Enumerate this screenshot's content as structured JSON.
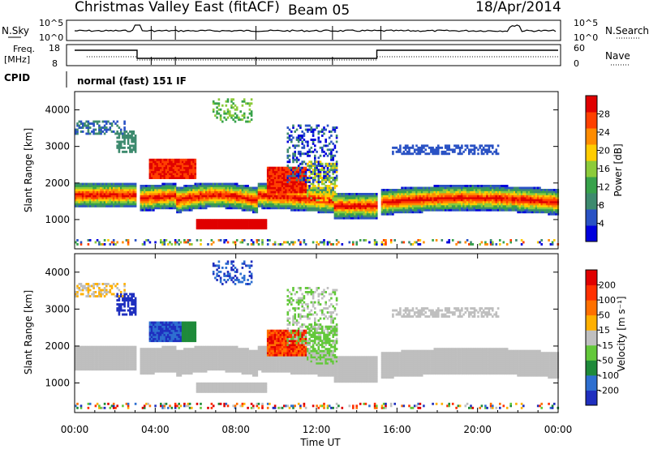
{
  "header": {
    "title": "Christmas Valley East (fitACF)",
    "beam": "Beam 05",
    "date": "18/Apr/2014"
  },
  "top_panels": {
    "nsky_label": "N.Sky",
    "nsky_ticks": [
      "10^5",
      "10^0"
    ],
    "nsearch_label": "N.Search",
    "nsearch_ticks": [
      "10^5",
      "10^0"
    ],
    "freq_label_1": "Freq.",
    "freq_label_2": "[MHz]",
    "freq_ticks": [
      "18",
      "8"
    ],
    "nave_label": "Nave",
    "nave_ticks": [
      "60",
      "0"
    ],
    "cpid_label": "CPID",
    "cpid_text": "normal (fast) 151 IF"
  },
  "chart_data": [
    {
      "type": "heatmap",
      "name": "power",
      "ylabel": "Slant Range [km]",
      "yticks": [
        1000,
        2000,
        3000,
        4000
      ],
      "ylim": [
        200,
        4500
      ],
      "xlim": [
        0,
        24
      ],
      "colorbar_label": "Power [dB]",
      "colorbar_ticks": [
        "28",
        "24",
        "20",
        "16",
        "12",
        "8",
        "4"
      ],
      "colorbar_colors": [
        "#0000dd",
        "#2a52c4",
        "#3d8a6e",
        "#37a24a",
        "#8ccb3a",
        "#ffcc00",
        "#ff8c00",
        "#ff4000",
        "#e00000"
      ]
    },
    {
      "type": "heatmap",
      "name": "velocity",
      "ylabel": "Slant Range [km]",
      "yticks": [
        1000,
        2000,
        3000,
        4000
      ],
      "ylim": [
        200,
        4500
      ],
      "xlim": [
        0,
        24
      ],
      "xticks": [
        "00:00",
        "04:00",
        "08:00",
        "12:00",
        "16:00",
        "20:00",
        "00:00"
      ],
      "xlabel": "Time UT",
      "colorbar_label": "Velocity [m s⁻¹]",
      "colorbar_ticks": [
        "200",
        "100",
        "50",
        "15",
        "-15",
        "-50",
        "-100",
        "-200"
      ],
      "colorbar_colors": [
        "#1f2fbf",
        "#2e6fd0",
        "#1e8a3a",
        "#63c83a",
        "#bfbfbf",
        "#ffb000",
        "#ff7000",
        "#ff3000",
        "#e00000"
      ]
    }
  ]
}
